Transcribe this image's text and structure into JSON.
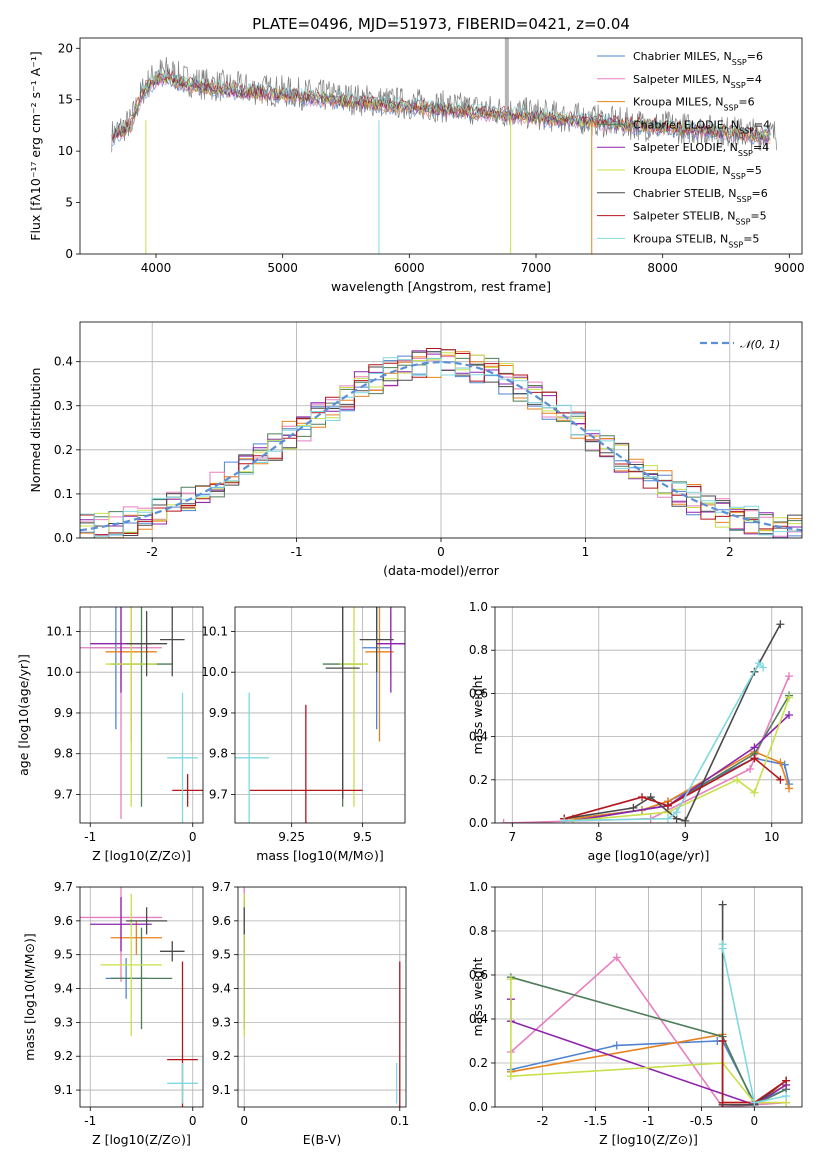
{
  "figure_title": "PLATE=0496, MJD=51973, FIBERID=0421, z=0.04",
  "colors": {
    "Chabrier MILES": "#4f83d1",
    "Salpeter MILES": "#e77fbf",
    "Kroupa MILES": "#e8821e",
    "Chabrier ELODIE": "#4e7d5a",
    "Salpeter ELODIE": "#8e24ad",
    "Kroupa ELODIE": "#c8e04a",
    "Chabrier STELIB": "#4a4a4a",
    "Salpeter STELIB": "#b5161c",
    "Kroupa STELIB": "#7fd9e0"
  },
  "legend": [
    "Chabrier MILES, N$SSP$=6",
    "Salpeter MILES, N$SSP$=4",
    "Kroupa MILES, N$SSP$=6",
    "Chabrier ELODIE, N$SSP$=4",
    "Salpeter ELODIE, N$SSP$=4",
    "Kroupa ELODIE, N$SSP$=5",
    "Chabrier STELIB, N$SSP$=6",
    "Salpeter STELIB, N$SSP$=5",
    "Kroupa STELIB, N$SSP$=5"
  ],
  "chart_data": [
    {
      "id": "spectrum",
      "type": "line",
      "title": "PLATE=0496, MJD=51973, FIBERID=0421, z=0.04",
      "xlabel": "wavelength [Angstrom, rest frame]",
      "ylabel": "Flux [fλ10⁻¹⁷ erg cm⁻² s⁻¹ A⁻¹]",
      "xlim": [
        3400,
        9100
      ],
      "ylim": [
        0,
        21
      ],
      "xticks": [
        4000,
        5000,
        6000,
        7000,
        8000,
        9000
      ],
      "yticks": [
        0,
        5,
        10,
        15,
        20
      ],
      "data_series": {
        "name": "",
        "color": "#808080",
        "x": [
          3650,
          3700,
          3800,
          3900,
          4000,
          4100,
          4200,
          4400,
          4600,
          4800,
          5000,
          5200,
          5400,
          5600,
          5800,
          6000,
          6200,
          6400,
          6600,
          6800,
          7000,
          7200,
          7400,
          7600,
          7800,
          8000,
          8200,
          8400,
          8600,
          8800
        ],
        "y": [
          11.5,
          12.0,
          12.8,
          16.0,
          17.5,
          17.8,
          17.0,
          16.5,
          16.2,
          16.0,
          15.8,
          15.5,
          15.3,
          15.0,
          14.8,
          14.6,
          14.4,
          14.2,
          14.0,
          13.8,
          13.6,
          13.3,
          13.1,
          12.8,
          12.6,
          12.4,
          12.2,
          12.0,
          11.8,
          11.6
        ]
      },
      "model_x": [
        3650,
        3700,
        3800,
        3900,
        4000,
        4100,
        4200,
        4400,
        4600,
        4800,
        5000,
        5200,
        5400,
        5600,
        5800,
        6000,
        6200,
        6400,
        6600,
        6800,
        7000,
        7200,
        7400,
        7600,
        7800,
        8000,
        8200,
        8400,
        8600,
        8800
      ],
      "model_y": [
        11.3,
        11.8,
        12.5,
        15.8,
        17.0,
        17.2,
        16.6,
        16.2,
        15.9,
        15.7,
        15.5,
        15.2,
        15.0,
        14.7,
        14.5,
        14.3,
        14.1,
        13.9,
        13.7,
        13.5,
        13.3,
        13.1,
        12.9,
        12.7,
        12.5,
        12.3,
        12.1,
        11.9,
        11.7,
        11.5
      ]
    },
    {
      "id": "residuals",
      "type": "line",
      "xlabel": "(data-model)/error",
      "ylabel": "Normed distribution",
      "xlim": [
        -2.5,
        2.5
      ],
      "ylim": [
        0,
        0.49
      ],
      "xticks": [
        -2,
        -1,
        0,
        1,
        2
      ],
      "yticks": [
        0.0,
        0.1,
        0.2,
        0.3,
        0.4
      ],
      "legend": [
        "$\\mathcal{N}(0,1)$"
      ],
      "gaussian": {
        "name": "N(0,1)",
        "color": "#5b8fd6",
        "mean": 0,
        "sigma": 1
      }
    },
    {
      "id": "age_vs_Z",
      "type": "scatter",
      "xlabel": "Z [log10(Z/Z⊙)]",
      "ylabel": "age [log10(age/yr)]",
      "xlim": [
        -1.1,
        0.1
      ],
      "ylim": [
        9.63,
        10.16
      ],
      "xticks": [
        -1,
        0
      ],
      "yticks": [
        9.7,
        9.8,
        9.9,
        10.0,
        10.1
      ],
      "points": [
        {
          "model": "Chabrier MILES",
          "x": -0.75,
          "y": 10.06,
          "xerr": 0.25,
          "yerr": 0.2
        },
        {
          "model": "Salpeter MILES",
          "x": -0.7,
          "y": 10.06,
          "xerr": 0.4,
          "yerr": 0.42
        },
        {
          "model": "Kroupa MILES",
          "x": -0.6,
          "y": 10.05,
          "xerr": 0.25,
          "yerr": 0.22
        },
        {
          "model": "Chabrier ELODIE",
          "x": -0.5,
          "y": 10.02,
          "xerr": 0.3,
          "yerr": 0.35
        },
        {
          "model": "Salpeter ELODIE",
          "x": -0.7,
          "y": 10.07,
          "xerr": 0.3,
          "yerr": 0.12
        },
        {
          "model": "Kroupa ELODIE",
          "x": -0.6,
          "y": 10.02,
          "xerr": 0.25,
          "yerr": 0.35
        },
        {
          "model": "Chabrier STELIB",
          "x": -0.45,
          "y": 10.07,
          "xerr": 0.2,
          "yerr": 0.08
        },
        {
          "model": "Chabrier STELIB",
          "x": -0.2,
          "y": 10.08,
          "xerr": 0.12,
          "yerr": 0.09
        },
        {
          "model": "Salpeter STELIB",
          "x": -0.05,
          "y": 9.71,
          "xerr": 0.15,
          "yerr": 0.04
        },
        {
          "model": "Kroupa STELIB",
          "x": -0.1,
          "y": 9.79,
          "xerr": 0.15,
          "yerr": 0.16
        }
      ]
    },
    {
      "id": "age_vs_mass",
      "type": "scatter",
      "xlabel": "mass [log10(M/M⊙)]",
      "ylabel": "",
      "xlim": [
        9.05,
        9.65
      ],
      "ylim": [
        9.63,
        10.16
      ],
      "xticks": [
        9.25,
        9.5
      ],
      "yticks": [
        9.7,
        9.8,
        9.9,
        10.0,
        10.1
      ],
      "points": [
        {
          "model": "Chabrier MILES",
          "x": 9.55,
          "y": 10.06,
          "xerr": 0.05,
          "yerr": 0.2
        },
        {
          "model": "Salpeter MILES",
          "x": 9.6,
          "y": 10.07,
          "xerr": 0.05,
          "yerr": 0.08
        },
        {
          "model": "Kroupa MILES",
          "x": 9.56,
          "y": 10.05,
          "xerr": 0.05,
          "yerr": 0.22
        },
        {
          "model": "Chabrier ELODIE",
          "x": 9.43,
          "y": 10.02,
          "xerr": 0.07,
          "yerr": 0.35
        },
        {
          "model": "Salpeter ELODIE",
          "x": 9.6,
          "y": 10.07,
          "xerr": 0.05,
          "yerr": 0.12
        },
        {
          "model": "Kroupa ELODIE",
          "x": 9.47,
          "y": 10.02,
          "xerr": 0.05,
          "yerr": 0.35
        },
        {
          "model": "Chabrier STELIB",
          "x": 9.55,
          "y": 10.08,
          "xerr": 0.06,
          "yerr": 0.08
        },
        {
          "model": "Chabrier STELIB",
          "x": 9.43,
          "y": 10.01,
          "xerr": 0.06,
          "yerr": 0.32
        },
        {
          "model": "Salpeter STELIB",
          "x": 9.3,
          "y": 9.71,
          "xerr": 0.2,
          "yerr": 0.21
        },
        {
          "model": "Kroupa STELIB",
          "x": 9.1,
          "y": 9.79,
          "xerr": 0.07,
          "yerr": 0.16
        }
      ]
    },
    {
      "id": "mass_weight_vs_age",
      "type": "line",
      "xlabel": "age [log10(age/yr)]",
      "ylabel": "mass weight",
      "xlim": [
        6.8,
        10.35
      ],
      "ylim": [
        0,
        1
      ],
      "xticks": [
        7,
        8,
        9,
        10
      ],
      "yticks": [
        0.0,
        0.2,
        0.4,
        0.6,
        0.8,
        1.0
      ],
      "series": [
        {
          "model": "Chabrier MILES",
          "x": [
            7.7,
            8.5,
            8.8,
            9.8,
            10.15,
            10.2
          ],
          "y": [
            0.02,
            0.06,
            0.1,
            0.3,
            0.27,
            0.18
          ]
        },
        {
          "model": "Salpeter MILES",
          "x": [
            6.9,
            8.6,
            9.75,
            10.2
          ],
          "y": [
            0.0,
            0.02,
            0.25,
            0.68
          ]
        },
        {
          "model": "Kroupa MILES",
          "x": [
            7.7,
            8.5,
            8.8,
            9.8,
            10.1,
            10.2
          ],
          "y": [
            0.02,
            0.06,
            0.1,
            0.33,
            0.28,
            0.16
          ]
        },
        {
          "model": "Chabrier ELODIE",
          "x": [
            7.7,
            8.8,
            9.8,
            10.2
          ],
          "y": [
            0.01,
            0.08,
            0.32,
            0.59
          ]
        },
        {
          "model": "Salpeter ELODIE",
          "x": [
            7.7,
            8.8,
            9.8,
            10.2
          ],
          "y": [
            0.01,
            0.08,
            0.35,
            0.5
          ]
        },
        {
          "model": "Kroupa ELODIE",
          "x": [
            7.7,
            8.8,
            9.6,
            9.8,
            10.2
          ],
          "y": [
            0.01,
            0.05,
            0.2,
            0.14,
            0.58
          ]
        },
        {
          "model": "Chabrier STELIB",
          "x": [
            7.6,
            8.4,
            8.6,
            8.9,
            9.0,
            9.8,
            10.1
          ],
          "y": [
            0.02,
            0.07,
            0.12,
            0.02,
            0.01,
            0.7,
            0.92
          ]
        },
        {
          "model": "Salpeter STELIB",
          "x": [
            7.6,
            8.5,
            8.8,
            9.8,
            10.1
          ],
          "y": [
            0.02,
            0.12,
            0.08,
            0.3,
            0.2
          ]
        },
        {
          "model": "Kroupa STELIB",
          "x": [
            7.6,
            8.8,
            8.9,
            9.85,
            9.9
          ],
          "y": [
            0.01,
            0.02,
            0.05,
            0.74,
            0.72
          ]
        }
      ]
    },
    {
      "id": "mass_vs_Z",
      "type": "scatter",
      "xlabel": "Z [log10(Z/Z⊙)]",
      "ylabel": "mass [log10(M/M⊙)]",
      "xlim": [
        -1.1,
        0.1
      ],
      "ylim": [
        9.05,
        9.7
      ],
      "xticks": [
        -1,
        0
      ],
      "yticks": [
        9.1,
        9.2,
        9.3,
        9.4,
        9.5,
        9.6,
        9.7
      ],
      "points": [
        {
          "model": "Chabrier MILES",
          "x": -0.65,
          "y": 9.43,
          "xerr": 0.2,
          "yerr": 0.06
        },
        {
          "model": "Salpeter MILES",
          "x": -0.7,
          "y": 9.61,
          "xerr": 0.4,
          "yerr": 0.19
        },
        {
          "model": "Kroupa MILES",
          "x": -0.55,
          "y": 9.55,
          "xerr": 0.25,
          "yerr": 0.05
        },
        {
          "model": "Chabrier ELODIE",
          "x": -0.5,
          "y": 9.43,
          "xerr": 0.3,
          "yerr": 0.15
        },
        {
          "model": "Salpeter ELODIE",
          "x": -0.7,
          "y": 9.59,
          "xerr": 0.3,
          "yerr": 0.08
        },
        {
          "model": "Kroupa ELODIE",
          "x": -0.6,
          "y": 9.47,
          "xerr": 0.3,
          "yerr": 0.21
        },
        {
          "model": "Chabrier STELIB",
          "x": -0.45,
          "y": 9.6,
          "xerr": 0.2,
          "yerr": 0.04
        },
        {
          "model": "Chabrier STELIB",
          "x": -0.2,
          "y": 9.51,
          "xerr": 0.12,
          "yerr": 0.03
        },
        {
          "model": "Salpeter STELIB",
          "x": -0.1,
          "y": 9.19,
          "xerr": 0.15,
          "yerr": 0.29
        },
        {
          "model": "Kroupa STELIB",
          "x": -0.1,
          "y": 9.12,
          "xerr": 0.15,
          "yerr": 0.06
        }
      ]
    },
    {
      "id": "mass_vs_ebv",
      "type": "scatter",
      "xlabel": "E(B-V)",
      "ylabel": "",
      "xlim": [
        -0.004,
        0.104
      ],
      "ylim": [
        9.05,
        9.7
      ],
      "xticks": [
        0.0,
        0.1
      ],
      "yticks": [
        9.1,
        9.2,
        9.3,
        9.4,
        9.5,
        9.6,
        9.7
      ],
      "points": [
        {
          "model": "Chabrier MILES",
          "x": 0.0,
          "y": 9.43,
          "xerr": 0,
          "yerr": 0.06
        },
        {
          "model": "Salpeter MILES",
          "x": 0.0,
          "y": 9.61,
          "xerr": 0,
          "yerr": 0.19
        },
        {
          "model": "Kroupa MILES",
          "x": 0.0,
          "y": 9.55,
          "xerr": 0,
          "yerr": 0.05
        },
        {
          "model": "Chabrier ELODIE",
          "x": 0.0,
          "y": 9.43,
          "xerr": 0,
          "yerr": 0.15
        },
        {
          "model": "Salpeter ELODIE",
          "x": 0.0,
          "y": 9.59,
          "xerr": 0,
          "yerr": 0.08
        },
        {
          "model": "Kroupa ELODIE",
          "x": 0.0,
          "y": 9.47,
          "xerr": 0,
          "yerr": 0.21
        },
        {
          "model": "Chabrier STELIB",
          "x": 0.0,
          "y": 9.6,
          "xerr": 0,
          "yerr": 0.04
        },
        {
          "model": "Salpeter STELIB",
          "x": 0.1,
          "y": 9.19,
          "xerr": 0,
          "yerr": 0.29
        },
        {
          "model": "Kroupa STELIB",
          "x": 0.098,
          "y": 9.12,
          "xerr": 0,
          "yerr": 0.06
        }
      ]
    },
    {
      "id": "mass_weight_vs_Z",
      "type": "line",
      "xlabel": "Z [log10(Z/Z⊙)]",
      "ylabel": "mass weight",
      "xlim": [
        -2.45,
        0.45
      ],
      "ylim": [
        0,
        1
      ],
      "xticks": [
        -2.0,
        -1.5,
        -1.0,
        -0.5,
        0.0
      ],
      "yticks": [
        0.0,
        0.2,
        0.4,
        0.6,
        0.8,
        1.0
      ],
      "series": [
        {
          "model": "Chabrier MILES",
          "x": [
            -2.3,
            -1.3,
            -0.35,
            -0.3,
            0.0,
            0.3
          ],
          "y": [
            0.17,
            0.28,
            0.3,
            0.3,
            0.02,
            0.08
          ]
        },
        {
          "model": "Salpeter MILES",
          "x": [
            -2.3,
            -1.3,
            -0.3,
            0.3
          ],
          "y": [
            0.25,
            0.68,
            0.0,
            0.02
          ]
        },
        {
          "model": "Kroupa MILES",
          "x": [
            -2.3,
            -0.3,
            -0.3,
            0.0,
            0.3
          ],
          "y": [
            0.16,
            0.33,
            0.02,
            0.02,
            0.1
          ]
        },
        {
          "model": "Chabrier ELODIE",
          "x": [
            -2.3,
            -0.3,
            0.0,
            0.3
          ],
          "y": [
            0.59,
            0.32,
            0.01,
            0.08
          ]
        },
        {
          "model": "Salpeter ELODIE",
          "x": [
            -2.3,
            -2.3,
            0.0,
            0.3
          ],
          "y": [
            0.49,
            0.39,
            0.01,
            0.1
          ]
        },
        {
          "model": "Kroupa ELODIE",
          "x": [
            -2.3,
            -2.3,
            -0.3,
            0.0,
            0.3
          ],
          "y": [
            0.58,
            0.14,
            0.2,
            0.02,
            0.02
          ]
        },
        {
          "model": "Chabrier STELIB",
          "x": [
            -0.3,
            -0.3,
            0.0,
            0.3
          ],
          "y": [
            0.92,
            0.01,
            0.01,
            0.12
          ]
        },
        {
          "model": "Salpeter STELIB",
          "x": [
            -0.3,
            -0.3,
            0.0,
            0.3
          ],
          "y": [
            0.3,
            0.02,
            0.02,
            0.12
          ]
        },
        {
          "model": "Kroupa STELIB",
          "x": [
            -0.3,
            -0.3,
            0.0,
            0.3
          ],
          "y": [
            0.74,
            0.72,
            0.02,
            0.05
          ]
        }
      ]
    }
  ]
}
